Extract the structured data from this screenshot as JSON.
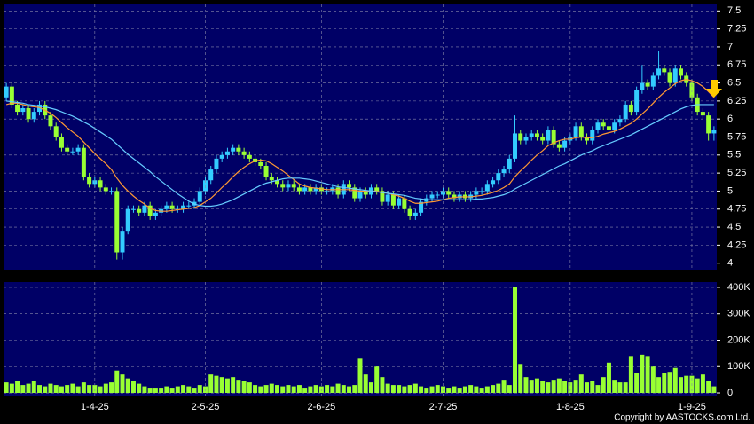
{
  "chart_data": [
    {
      "type": "candlestick",
      "up_color": "#33ccff",
      "down_color": "#99ff33",
      "grid": true,
      "ylim": [
        3.91,
        7.59
      ],
      "yticks": [
        4,
        4.25,
        4.5,
        4.75,
        5,
        5.25,
        5.5,
        5.75,
        6,
        6.25,
        6.5,
        6.75,
        7,
        7.25,
        7.5
      ],
      "open": [
        6.3,
        6.45,
        6.2,
        6.1,
        6.15,
        6.0,
        6.1,
        6.2,
        6.05,
        5.9,
        5.75,
        5.6,
        5.55,
        5.55,
        5.6,
        5.2,
        5.1,
        5.15,
        5.05,
        5.0,
        5.0,
        4.15,
        4.45,
        4.75,
        4.75,
        4.7,
        4.8,
        4.65,
        4.7,
        4.75,
        4.8,
        4.75,
        4.75,
        4.8,
        4.8,
        4.85,
        5.0,
        5.15,
        5.3,
        5.45,
        5.5,
        5.55,
        5.6,
        5.55,
        5.5,
        5.45,
        5.4,
        5.35,
        5.2,
        5.15,
        5.1,
        5.05,
        5.1,
        5.05,
        5.0,
        5.05,
        5.0,
        5.05,
        5.0,
        5.0,
        5.05,
        4.95,
        5.1,
        5.05,
        4.9,
        5.0,
        4.95,
        5.05,
        5.0,
        4.85,
        4.95,
        4.8,
        4.9,
        4.75,
        4.65,
        4.7,
        4.85,
        4.9,
        4.95,
        4.95,
        5.0,
        4.95,
        4.9,
        4.95,
        4.9,
        4.95,
        5.0,
        5.0,
        5.1,
        5.15,
        5.25,
        5.3,
        5.45,
        5.8,
        5.7,
        5.75,
        5.8,
        5.75,
        5.7,
        5.85,
        5.65,
        5.6,
        5.7,
        5.75,
        5.9,
        5.75,
        5.7,
        5.85,
        5.95,
        5.9,
        5.85,
        5.95,
        6.0,
        6.2,
        6.1,
        6.4,
        6.5,
        6.45,
        6.6,
        6.7,
        6.65,
        6.5,
        6.7,
        6.6,
        6.5,
        6.3,
        6.1,
        6.05,
        5.8
      ],
      "high": [
        6.5,
        6.5,
        6.25,
        6.2,
        6.2,
        6.15,
        6.25,
        6.25,
        6.1,
        5.95,
        5.8,
        5.65,
        5.6,
        5.65,
        5.65,
        5.25,
        5.2,
        5.2,
        5.1,
        5.05,
        5.05,
        4.5,
        4.8,
        4.8,
        4.8,
        4.85,
        4.85,
        4.75,
        4.8,
        4.85,
        4.85,
        4.8,
        4.85,
        4.85,
        4.9,
        5.05,
        5.2,
        5.35,
        5.5,
        5.55,
        5.6,
        5.65,
        5.65,
        5.6,
        5.55,
        5.5,
        5.45,
        5.4,
        5.25,
        5.2,
        5.15,
        5.15,
        5.15,
        5.1,
        5.1,
        5.1,
        5.1,
        5.1,
        5.05,
        5.1,
        5.1,
        5.15,
        5.15,
        5.1,
        5.05,
        5.05,
        5.1,
        5.1,
        5.05,
        5.0,
        5.0,
        4.95,
        4.95,
        4.8,
        4.75,
        4.9,
        4.95,
        5.0,
        5.0,
        5.05,
        5.05,
        5.0,
        5.0,
        5.0,
        5.0,
        5.05,
        5.05,
        5.15,
        5.2,
        5.3,
        5.35,
        5.5,
        6.05,
        5.85,
        5.8,
        5.85,
        5.85,
        5.8,
        5.9,
        5.9,
        5.7,
        5.75,
        5.8,
        5.95,
        5.95,
        5.8,
        5.9,
        6.0,
        6.0,
        5.95,
        6.0,
        6.05,
        6.25,
        6.25,
        6.45,
        6.75,
        6.55,
        6.65,
        6.95,
        6.75,
        6.7,
        6.75,
        6.75,
        6.65,
        6.55,
        6.35,
        6.15,
        6.1,
        5.9
      ],
      "low": [
        6.25,
        6.15,
        6.05,
        6.05,
        5.95,
        5.95,
        6.05,
        6.0,
        5.85,
        5.7,
        5.55,
        5.5,
        5.5,
        5.5,
        5.15,
        5.05,
        5.05,
        5.0,
        4.95,
        4.95,
        4.05,
        4.05,
        4.4,
        4.7,
        4.65,
        4.65,
        4.6,
        4.6,
        4.65,
        4.7,
        4.7,
        4.7,
        4.7,
        4.75,
        4.75,
        4.8,
        4.95,
        5.1,
        5.25,
        5.4,
        5.45,
        5.5,
        5.5,
        5.45,
        5.4,
        5.35,
        5.3,
        5.15,
        5.1,
        5.05,
        5.0,
        5.0,
        5.0,
        4.95,
        4.95,
        4.95,
        4.95,
        4.95,
        4.95,
        4.95,
        4.9,
        4.9,
        5.0,
        4.85,
        4.85,
        4.9,
        4.9,
        4.95,
        4.8,
        4.8,
        4.75,
        4.75,
        4.7,
        4.6,
        4.6,
        4.65,
        4.8,
        4.85,
        4.9,
        4.9,
        4.9,
        4.85,
        4.85,
        4.85,
        4.85,
        4.9,
        4.95,
        4.95,
        5.05,
        5.1,
        5.2,
        5.25,
        5.4,
        5.65,
        5.65,
        5.7,
        5.7,
        5.65,
        5.65,
        5.6,
        5.55,
        5.55,
        5.65,
        5.7,
        5.7,
        5.65,
        5.65,
        5.8,
        5.85,
        5.8,
        5.8,
        5.9,
        5.95,
        6.05,
        6.05,
        6.35,
        6.4,
        6.4,
        6.55,
        6.6,
        6.45,
        6.45,
        6.55,
        6.45,
        6.25,
        6.05,
        6.0,
        5.7,
        5.7
      ],
      "close": [
        6.45,
        6.2,
        6.1,
        6.15,
        6.0,
        6.1,
        6.2,
        6.05,
        5.9,
        5.75,
        5.6,
        5.55,
        5.55,
        5.6,
        5.2,
        5.1,
        5.15,
        5.05,
        5.0,
        5.0,
        4.15,
        4.45,
        4.75,
        4.75,
        4.7,
        4.8,
        4.65,
        4.7,
        4.75,
        4.8,
        4.75,
        4.75,
        4.8,
        4.8,
        4.85,
        5.0,
        5.15,
        5.3,
        5.45,
        5.5,
        5.55,
        5.6,
        5.55,
        5.5,
        5.45,
        5.4,
        5.35,
        5.2,
        5.15,
        5.1,
        5.05,
        5.1,
        5.05,
        5.0,
        5.05,
        5.0,
        5.05,
        5.0,
        5.0,
        5.05,
        4.95,
        5.1,
        5.05,
        4.9,
        5.0,
        4.95,
        5.05,
        5.0,
        4.85,
        4.95,
        4.8,
        4.9,
        4.75,
        4.65,
        4.7,
        4.85,
        4.9,
        4.95,
        4.95,
        5.0,
        4.95,
        4.9,
        4.95,
        4.9,
        4.95,
        5.0,
        5.0,
        5.1,
        5.15,
        5.25,
        5.3,
        5.45,
        5.8,
        5.7,
        5.75,
        5.8,
        5.75,
        5.7,
        5.85,
        5.65,
        5.6,
        5.7,
        5.75,
        5.9,
        5.75,
        5.7,
        5.85,
        5.95,
        5.9,
        5.85,
        5.95,
        6.0,
        6.2,
        6.1,
        6.4,
        6.5,
        6.45,
        6.6,
        6.7,
        6.65,
        6.5,
        6.7,
        6.6,
        6.5,
        6.3,
        6.1,
        6.05,
        5.8,
        5.85
      ],
      "series": [
        {
          "color": "#ff9933",
          "values": [
            6.2,
            6.22,
            6.22,
            6.2,
            6.18,
            6.17,
            6.16,
            6.12,
            6.08,
            6.02,
            5.95,
            5.88,
            5.82,
            5.76,
            5.68,
            5.6,
            5.52,
            5.45,
            5.38,
            5.3,
            5.18,
            5.08,
            5.0,
            4.93,
            4.87,
            4.82,
            4.76,
            4.73,
            4.72,
            4.72,
            4.73,
            4.74,
            4.75,
            4.76,
            4.77,
            4.8,
            4.85,
            4.9,
            4.97,
            5.05,
            5.12,
            5.2,
            5.27,
            5.33,
            5.38,
            5.42,
            5.43,
            5.42,
            5.38,
            5.33,
            5.28,
            5.22,
            5.16,
            5.1,
            5.07,
            5.05,
            5.04,
            5.03,
            5.02,
            5.02,
            5.02,
            5.02,
            5.02,
            5.01,
            5.0,
            5.0,
            5.0,
            5.0,
            4.98,
            4.97,
            4.95,
            4.93,
            4.9,
            4.86,
            4.83,
            4.83,
            4.84,
            4.85,
            4.86,
            4.88,
            4.9,
            4.91,
            4.92,
            4.92,
            4.92,
            4.93,
            4.94,
            4.96,
            4.98,
            5.01,
            5.05,
            5.1,
            5.2,
            5.28,
            5.35,
            5.43,
            5.5,
            5.56,
            5.63,
            5.67,
            5.7,
            5.72,
            5.72,
            5.74,
            5.75,
            5.74,
            5.74,
            5.76,
            5.79,
            5.81,
            5.83,
            5.86,
            5.9,
            5.94,
            6.0,
            6.07,
            6.14,
            6.22,
            6.3,
            6.37,
            6.43,
            6.49,
            6.53,
            6.55,
            6.53,
            6.5,
            6.45,
            6.38,
            6.3
          ]
        },
        {
          "color": "#66ccff",
          "values": [
            6.25,
            6.24,
            6.23,
            6.22,
            6.2,
            6.19,
            6.18,
            6.17,
            6.15,
            6.13,
            6.1,
            6.07,
            6.04,
            6.0,
            5.96,
            5.92,
            5.87,
            5.82,
            5.77,
            5.72,
            5.65,
            5.58,
            5.51,
            5.45,
            5.39,
            5.33,
            5.27,
            5.2,
            5.14,
            5.08,
            5.02,
            4.96,
            4.91,
            4.86,
            4.82,
            4.8,
            4.79,
            4.79,
            4.8,
            4.82,
            4.85,
            4.88,
            4.92,
            4.96,
            5.0,
            5.04,
            5.08,
            5.11,
            5.13,
            5.15,
            5.17,
            5.18,
            5.18,
            5.18,
            5.17,
            5.16,
            5.14,
            5.12,
            5.1,
            5.08,
            5.06,
            5.05,
            5.04,
            5.03,
            5.02,
            5.01,
            5.0,
            4.99,
            4.98,
            4.97,
            4.96,
            4.95,
            4.94,
            4.92,
            4.9,
            4.89,
            4.88,
            4.88,
            4.88,
            4.88,
            4.88,
            4.88,
            4.88,
            4.88,
            4.88,
            4.89,
            4.89,
            4.9,
            4.91,
            4.93,
            4.95,
            4.98,
            5.03,
            5.07,
            5.11,
            5.15,
            5.19,
            5.23,
            5.27,
            5.31,
            5.35,
            5.38,
            5.42,
            5.46,
            5.5,
            5.53,
            5.56,
            5.6,
            5.63,
            5.66,
            5.69,
            5.72,
            5.75,
            5.78,
            5.82,
            5.86,
            5.9,
            5.94,
            5.98,
            6.02,
            6.06,
            6.1,
            6.14,
            6.17,
            6.19,
            6.2,
            6.2,
            6.2,
            6.2
          ]
        }
      ]
    },
    {
      "type": "bar",
      "color": "#99ff33",
      "grid": true,
      "ylim": [
        -10000,
        420000
      ],
      "yticks": [
        0,
        {
          "value": 100000,
          "label": "100K"
        },
        {
          "value": 200000,
          "label": "200K"
        },
        {
          "value": 300000,
          "label": "300K"
        },
        {
          "value": 400000,
          "label": "400K"
        }
      ],
      "categories": [
        null,
        null,
        null,
        null,
        null,
        null,
        null,
        null,
        null,
        null,
        null,
        null,
        null,
        null,
        null,
        null,
        "1-4-25",
        null,
        null,
        null,
        null,
        null,
        null,
        null,
        null,
        null,
        null,
        null,
        null,
        null,
        null,
        null,
        null,
        null,
        null,
        null,
        "2-5-25",
        null,
        null,
        null,
        null,
        null,
        null,
        null,
        null,
        null,
        null,
        null,
        null,
        null,
        null,
        null,
        null,
        null,
        null,
        null,
        null,
        "2-6-25",
        null,
        null,
        null,
        null,
        null,
        null,
        null,
        null,
        null,
        null,
        null,
        null,
        null,
        null,
        null,
        null,
        null,
        null,
        null,
        null,
        null,
        "2-7-25",
        null,
        null,
        null,
        null,
        null,
        null,
        null,
        null,
        null,
        null,
        null,
        null,
        null,
        null,
        null,
        null,
        null,
        null,
        null,
        null,
        null,
        null,
        "1-8-25",
        null,
        null,
        null,
        null,
        null,
        null,
        null,
        null,
        null,
        null,
        null,
        null,
        null,
        null,
        null,
        null,
        null,
        null,
        null,
        null,
        null,
        "1-9-25",
        null,
        null,
        null,
        null
      ],
      "values": [
        40000,
        35000,
        45000,
        30000,
        35000,
        45000,
        30000,
        25000,
        35000,
        30000,
        25000,
        30000,
        35000,
        25000,
        40000,
        30000,
        30000,
        25000,
        35000,
        40000,
        85000,
        70000,
        55000,
        45000,
        35000,
        25000,
        20000,
        20000,
        20000,
        25000,
        20000,
        25000,
        30000,
        25000,
        20000,
        30000,
        25000,
        70000,
        65000,
        60000,
        55000,
        60000,
        50000,
        45000,
        40000,
        30000,
        25000,
        30000,
        35000,
        30000,
        25000,
        30000,
        25000,
        30000,
        20000,
        25000,
        30000,
        25000,
        30000,
        25000,
        35000,
        30000,
        25000,
        30000,
        130000,
        70000,
        40000,
        100000,
        60000,
        35000,
        30000,
        30000,
        25000,
        30000,
        35000,
        25000,
        20000,
        25000,
        30000,
        25000,
        20000,
        25000,
        20000,
        25000,
        30000,
        25000,
        20000,
        25000,
        30000,
        35000,
        50000,
        30000,
        400000,
        110000,
        60000,
        50000,
        55000,
        45000,
        40000,
        50000,
        55000,
        45000,
        40000,
        50000,
        70000,
        40000,
        45000,
        30000,
        60000,
        115000,
        50000,
        40000,
        40000,
        140000,
        75000,
        145000,
        140000,
        100000,
        60000,
        75000,
        80000,
        95000,
        60000,
        65000,
        65000,
        55000,
        70000,
        45000,
        25000
      ]
    }
  ],
  "copyright": "Copyright by AASTOCKS.com Ltd."
}
